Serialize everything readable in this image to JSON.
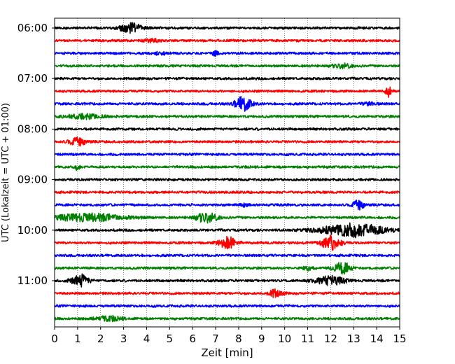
{
  "chart_data": {
    "type": "line",
    "title": "",
    "xlabel": "Zeit  [min]",
    "ylabel": "UTC (Lokalzeit = UTC + 01:00)",
    "xlim": [
      0,
      15
    ],
    "x_ticks": [
      "0",
      "1",
      "2",
      "3",
      "4",
      "5",
      "6",
      "7",
      "8",
      "9",
      "10",
      "11",
      "12",
      "13",
      "14",
      "15"
    ],
    "y_ticks": [
      "06:00",
      "07:00",
      "08:00",
      "09:00",
      "10:00",
      "11:00"
    ],
    "grid": "vertical dotted",
    "trace_colors": [
      "#000000",
      "#ff0000",
      "#0000ff",
      "#008000"
    ],
    "traces": [
      {
        "start": "06:00",
        "color": "#000000",
        "bursts": [
          [
            3.3,
            7,
            0.45
          ]
        ]
      },
      {
        "start": "06:15",
        "color": "#ff0000",
        "bursts": [
          [
            4.2,
            2,
            0.3
          ]
        ]
      },
      {
        "start": "06:30",
        "color": "#0000ff",
        "bursts": [
          [
            4.6,
            2,
            0.25
          ],
          [
            7.0,
            3,
            0.15
          ]
        ]
      },
      {
        "start": "06:45",
        "color": "#008000",
        "bursts": [
          [
            12.5,
            3,
            0.4
          ]
        ]
      },
      {
        "start": "07:00",
        "color": "#000000",
        "bursts": []
      },
      {
        "start": "07:15",
        "color": "#ff0000",
        "bursts": [
          [
            14.5,
            9,
            0.1
          ]
        ]
      },
      {
        "start": "07:30",
        "color": "#0000ff",
        "bursts": [
          [
            8.2,
            10,
            0.35
          ],
          [
            13.7,
            2,
            0.3
          ]
        ]
      },
      {
        "start": "07:45",
        "color": "#008000",
        "bursts": [
          [
            1.3,
            3,
            0.8
          ]
        ]
      },
      {
        "start": "08:00",
        "color": "#000000",
        "bursts": []
      },
      {
        "start": "08:15",
        "color": "#ff0000",
        "bursts": [
          [
            1.0,
            6,
            0.35
          ]
        ]
      },
      {
        "start": "08:30",
        "color": "#0000ff",
        "bursts": []
      },
      {
        "start": "08:45",
        "color": "#008000",
        "bursts": [
          [
            1.0,
            4,
            0.1
          ]
        ]
      },
      {
        "start": "09:00",
        "color": "#000000",
        "bursts": []
      },
      {
        "start": "09:15",
        "color": "#ff0000",
        "bursts": []
      },
      {
        "start": "09:30",
        "color": "#0000ff",
        "bursts": [
          [
            13.2,
            7,
            0.25
          ],
          [
            8.2,
            2,
            0.2
          ]
        ]
      },
      {
        "start": "09:45",
        "color": "#008000",
        "bursts": [
          [
            1.5,
            5,
            1.6
          ],
          [
            6.6,
            7,
            0.45
          ]
        ]
      },
      {
        "start": "10:00",
        "color": "#000000",
        "bursts": [
          [
            13.0,
            9,
            1.4
          ]
        ]
      },
      {
        "start": "10:15",
        "color": "#ff0000",
        "bursts": [
          [
            7.5,
            9,
            0.35
          ],
          [
            12.0,
            11,
            0.4
          ]
        ]
      },
      {
        "start": "10:30",
        "color": "#0000ff",
        "bursts": []
      },
      {
        "start": "10:45",
        "color": "#008000",
        "bursts": [
          [
            12.5,
            8,
            0.35
          ],
          [
            11.0,
            3,
            0.2
          ]
        ]
      },
      {
        "start": "11:00",
        "color": "#000000",
        "bursts": [
          [
            1.1,
            9,
            0.35
          ],
          [
            12.0,
            6,
            0.6
          ]
        ]
      },
      {
        "start": "11:15",
        "color": "#ff0000",
        "bursts": [
          [
            9.6,
            5,
            0.3
          ]
        ]
      },
      {
        "start": "11:30",
        "color": "#0000ff",
        "bursts": []
      },
      {
        "start": "11:45",
        "color": "#008000",
        "bursts": [
          [
            2.3,
            3,
            0.6
          ]
        ]
      }
    ]
  }
}
